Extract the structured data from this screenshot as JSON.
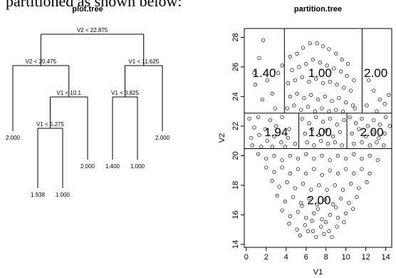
{
  "caption_text": "partitioned as shown below:",
  "chart_data": [
    {
      "type": "tree",
      "title": "plot.tree",
      "root": {
        "split": "V2 < 22.875",
        "left": {
          "split": "V2 < 20.475",
          "left": {
            "leaf": "2.000"
          },
          "right": {
            "split": "V1 < 10.1",
            "left": {
              "split": "V1 < 5.275",
              "left": {
                "leaf": "1.938"
              },
              "right": {
                "leaf": "1.000"
              }
            },
            "right": {
              "leaf": "2.000"
            }
          }
        },
        "right": {
          "split": "V1 < 11.625",
          "left": {
            "split": "V1 < 3.825",
            "left": {
              "leaf": "1.400"
            },
            "right": {
              "leaf": "1.000"
            }
          },
          "right": {
            "leaf": "2.000"
          }
        }
      }
    },
    {
      "type": "scatter",
      "title": "partition.tree",
      "xlabel": "V1",
      "ylabel": "V2",
      "xlim": [
        -0.2,
        14.6
      ],
      "ylim": [
        13.8,
        28.6
      ],
      "xticks": [
        0,
        2,
        4,
        6,
        8,
        10,
        12,
        14
      ],
      "yticks": [
        14,
        16,
        18,
        20,
        22,
        24,
        26,
        28
      ],
      "partition_lines": [
        {
          "orient": "h",
          "at": 22.875,
          "from": -0.2,
          "to": 14.6
        },
        {
          "orient": "h",
          "at": 20.475,
          "from": -0.2,
          "to": 14.6
        },
        {
          "orient": "v",
          "at": 3.825,
          "from": 22.875,
          "to": 28.6
        },
        {
          "orient": "v",
          "at": 11.625,
          "from": 22.875,
          "to": 28.6
        },
        {
          "orient": "v",
          "at": 5.275,
          "from": 20.475,
          "to": 22.875
        },
        {
          "orient": "v",
          "at": 10.1,
          "from": 20.475,
          "to": 22.875
        }
      ],
      "region_labels": [
        {
          "text": "1.40",
          "x": 1.8,
          "y": 25.6
        },
        {
          "text": "1.00",
          "x": 7.4,
          "y": 25.6
        },
        {
          "text": "2.00",
          "x": 13.0,
          "y": 25.6
        },
        {
          "text": "1.94",
          "x": 3.0,
          "y": 21.6
        },
        {
          "text": "1.00",
          "x": 7.4,
          "y": 21.6
        },
        {
          "text": "2.00",
          "x": 12.6,
          "y": 21.6
        },
        {
          "text": "2.00",
          "x": 7.3,
          "y": 17.0
        }
      ],
      "points": [
        [
          1.7,
          27.8
        ],
        [
          1.3,
          26.6
        ],
        [
          0.8,
          25.6
        ],
        [
          0.9,
          24.8
        ],
        [
          2.1,
          25.1
        ],
        [
          2.6,
          24.2
        ],
        [
          3.2,
          25.6
        ],
        [
          1.6,
          23.8
        ],
        [
          2.9,
          23.2
        ],
        [
          3.6,
          26.1
        ],
        [
          4.4,
          26.7
        ],
        [
          5.1,
          26.9
        ],
        [
          5.7,
          27.3
        ],
        [
          6.4,
          27.6
        ],
        [
          7.1,
          27.6
        ],
        [
          7.7,
          27.4
        ],
        [
          8.3,
          27.2
        ],
        [
          9.0,
          26.9
        ],
        [
          9.6,
          26.5
        ],
        [
          10.2,
          26.2
        ],
        [
          4.6,
          25.8
        ],
        [
          5.3,
          26.0
        ],
        [
          6.0,
          26.2
        ],
        [
          6.7,
          26.5
        ],
        [
          7.4,
          26.3
        ],
        [
          8.1,
          26.1
        ],
        [
          8.8,
          25.9
        ],
        [
          9.5,
          25.7
        ],
        [
          10.1,
          25.4
        ],
        [
          10.8,
          25.1
        ],
        [
          4.2,
          24.9
        ],
        [
          4.9,
          25.1
        ],
        [
          5.6,
          25.3
        ],
        [
          6.3,
          25.0
        ],
        [
          7.0,
          25.2
        ],
        [
          7.7,
          24.9
        ],
        [
          8.4,
          25.0
        ],
        [
          9.1,
          24.8
        ],
        [
          9.8,
          24.6
        ],
        [
          10.5,
          24.4
        ],
        [
          4.4,
          24.0
        ],
        [
          5.1,
          24.2
        ],
        [
          5.8,
          23.9
        ],
        [
          6.5,
          24.1
        ],
        [
          7.2,
          23.8
        ],
        [
          7.9,
          24.0
        ],
        [
          8.6,
          23.7
        ],
        [
          9.3,
          23.9
        ],
        [
          10.0,
          23.6
        ],
        [
          10.7,
          23.4
        ],
        [
          4.1,
          23.2
        ],
        [
          4.8,
          23.4
        ],
        [
          5.5,
          23.1
        ],
        [
          6.2,
          23.3
        ],
        [
          6.9,
          23.0
        ],
        [
          7.6,
          23.2
        ],
        [
          8.3,
          23.0
        ],
        [
          9.0,
          23.1
        ],
        [
          9.7,
          23.0
        ],
        [
          10.9,
          23.2
        ],
        [
          12.3,
          25.1
        ],
        [
          12.8,
          24.4
        ],
        [
          13.4,
          23.8
        ],
        [
          13.9,
          23.5
        ],
        [
          14.3,
          24.1
        ],
        [
          12.1,
          23.4
        ],
        [
          13.1,
          23.0
        ],
        [
          0.3,
          22.5
        ],
        [
          0.8,
          21.9
        ],
        [
          1.2,
          22.6
        ],
        [
          1.9,
          21.8
        ],
        [
          2.4,
          22.4
        ],
        [
          3.0,
          22.0
        ],
        [
          3.6,
          22.6
        ],
        [
          4.3,
          21.8
        ],
        [
          0.5,
          21.2
        ],
        [
          1.3,
          21.4
        ],
        [
          2.1,
          21.0
        ],
        [
          2.8,
          21.3
        ],
        [
          3.5,
          20.9
        ],
        [
          4.2,
          21.2
        ],
        [
          4.9,
          20.8
        ],
        [
          0.6,
          20.7
        ],
        [
          1.5,
          20.6
        ],
        [
          2.6,
          20.6
        ],
        [
          3.9,
          20.6
        ],
        [
          5.6,
          22.5
        ],
        [
          6.3,
          22.2
        ],
        [
          7.0,
          22.6
        ],
        [
          7.7,
          22.3
        ],
        [
          8.4,
          22.5
        ],
        [
          9.1,
          22.1
        ],
        [
          9.8,
          22.4
        ],
        [
          5.9,
          21.5
        ],
        [
          6.6,
          21.8
        ],
        [
          7.3,
          21.4
        ],
        [
          8.0,
          21.7
        ],
        [
          8.7,
          21.3
        ],
        [
          9.4,
          21.6
        ],
        [
          6.1,
          20.9
        ],
        [
          6.8,
          20.7
        ],
        [
          7.5,
          21.0
        ],
        [
          8.2,
          20.8
        ],
        [
          8.9,
          20.9
        ],
        [
          9.6,
          20.7
        ],
        [
          10.4,
          22.6
        ],
        [
          11.0,
          22.2
        ],
        [
          11.6,
          22.5
        ],
        [
          12.2,
          22.0
        ],
        [
          12.8,
          22.4
        ],
        [
          13.4,
          22.1
        ],
        [
          14.0,
          22.6
        ],
        [
          14.4,
          22.0
        ],
        [
          10.6,
          21.5
        ],
        [
          11.3,
          21.8
        ],
        [
          12.0,
          21.3
        ],
        [
          12.7,
          21.6
        ],
        [
          13.3,
          21.2
        ],
        [
          13.9,
          21.5
        ],
        [
          10.8,
          20.8
        ],
        [
          11.6,
          20.9
        ],
        [
          12.4,
          20.7
        ],
        [
          13.1,
          20.9
        ],
        [
          13.8,
          20.7
        ],
        [
          1.2,
          20.1
        ],
        [
          2.0,
          19.8
        ],
        [
          2.8,
          20.0
        ],
        [
          3.6,
          19.7
        ],
        [
          4.4,
          20.0
        ],
        [
          5.2,
          19.8
        ],
        [
          6.0,
          20.1
        ],
        [
          6.8,
          19.8
        ],
        [
          7.6,
          20.0
        ],
        [
          8.4,
          19.7
        ],
        [
          9.2,
          20.0
        ],
        [
          10.0,
          19.8
        ],
        [
          10.8,
          20.1
        ],
        [
          11.6,
          19.8
        ],
        [
          12.4,
          20.0
        ],
        [
          13.2,
          19.7
        ],
        [
          2.0,
          19.2
        ],
        [
          2.8,
          18.9
        ],
        [
          3.6,
          19.2
        ],
        [
          4.4,
          18.8
        ],
        [
          5.2,
          19.1
        ],
        [
          6.0,
          18.8
        ],
        [
          6.8,
          19.1
        ],
        [
          7.6,
          18.7
        ],
        [
          8.4,
          19.0
        ],
        [
          9.2,
          18.8
        ],
        [
          10.0,
          19.1
        ],
        [
          10.8,
          18.8
        ],
        [
          11.6,
          19.1
        ],
        [
          12.4,
          18.8
        ],
        [
          2.6,
          18.3
        ],
        [
          3.3,
          17.9
        ],
        [
          4.1,
          18.2
        ],
        [
          4.9,
          17.8
        ],
        [
          5.7,
          18.1
        ],
        [
          6.5,
          17.7
        ],
        [
          7.3,
          18.0
        ],
        [
          8.1,
          17.7
        ],
        [
          8.9,
          18.0
        ],
        [
          9.7,
          17.7
        ],
        [
          10.5,
          18.1
        ],
        [
          11.3,
          17.8
        ],
        [
          12.1,
          18.2
        ],
        [
          3.1,
          17.3
        ],
        [
          3.9,
          16.9
        ],
        [
          4.7,
          17.2
        ],
        [
          5.5,
          16.8
        ],
        [
          6.3,
          17.1
        ],
        [
          7.1,
          16.7
        ],
        [
          7.9,
          17.0
        ],
        [
          8.7,
          16.7
        ],
        [
          9.5,
          17.1
        ],
        [
          10.3,
          16.8
        ],
        [
          11.1,
          17.2
        ],
        [
          3.6,
          16.3
        ],
        [
          4.4,
          15.9
        ],
        [
          5.2,
          16.2
        ],
        [
          6.0,
          15.8
        ],
        [
          6.8,
          16.1
        ],
        [
          7.6,
          15.7
        ],
        [
          8.4,
          16.0
        ],
        [
          9.2,
          15.8
        ],
        [
          10.0,
          16.1
        ],
        [
          10.7,
          16.4
        ],
        [
          4.3,
          15.4
        ],
        [
          5.1,
          15.0
        ],
        [
          5.9,
          15.3
        ],
        [
          6.7,
          14.9
        ],
        [
          7.5,
          15.2
        ],
        [
          8.3,
          14.9
        ],
        [
          9.1,
          15.2
        ],
        [
          9.8,
          15.5
        ],
        [
          5.4,
          14.6
        ],
        [
          6.2,
          14.9
        ],
        [
          7.0,
          14.5
        ],
        [
          7.8,
          14.7
        ],
        [
          8.6,
          14.5
        ],
        [
          6.6,
          15.6
        ],
        [
          7.2,
          16.4
        ],
        [
          8.0,
          15.5
        ],
        [
          5.6,
          16.6
        ],
        [
          9.0,
          16.5
        ]
      ]
    }
  ]
}
